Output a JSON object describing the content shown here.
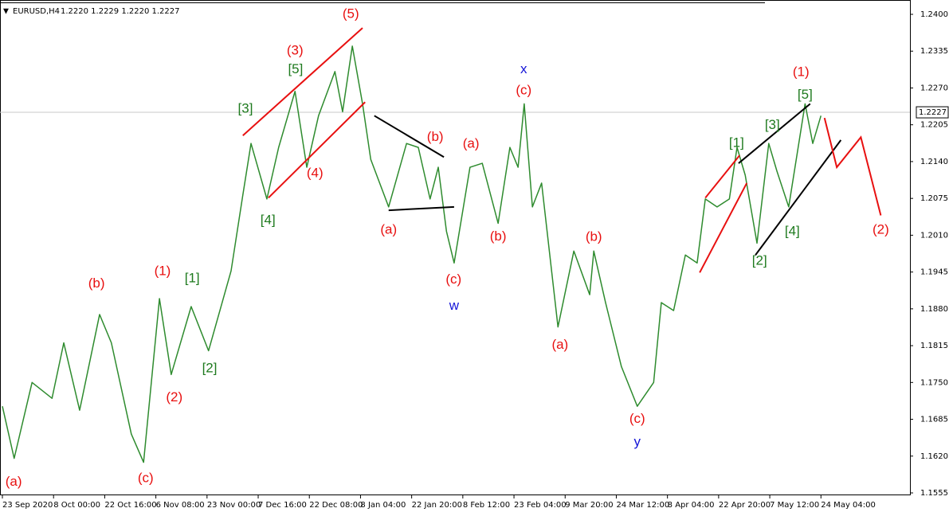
{
  "chart_data": {
    "type": "line",
    "symbol": "EURUSD,H4",
    "ohlc": "1.2220 1.2229 1.2220 1.2227",
    "last_price": {
      "value": 1.2227,
      "label": "1.2227"
    },
    "xlim": [
      0,
      17.74
    ],
    "xticks": [
      {
        "value": 0,
        "label": "23 Sep 2020"
      },
      {
        "value": 1,
        "label": "8 Oct 00:00"
      },
      {
        "value": 2,
        "label": "22 Oct 16:00"
      },
      {
        "value": 3,
        "label": "6 Nov 08:00"
      },
      {
        "value": 4,
        "label": "23 Nov 00:00"
      },
      {
        "value": 5,
        "label": "7 Dec 16:00"
      },
      {
        "value": 6,
        "label": "22 Dec 08:00"
      },
      {
        "value": 7,
        "label": "8 Jan 04:00"
      },
      {
        "value": 8,
        "label": "22 Jan 20:00"
      },
      {
        "value": 9,
        "label": "8 Feb 12:00"
      },
      {
        "value": 10,
        "label": "23 Feb 04:00"
      },
      {
        "value": 11,
        "label": "9 Mar 20:00"
      },
      {
        "value": 12,
        "label": "24 Mar 12:00"
      },
      {
        "value": 13,
        "label": "8 Apr 04:00"
      },
      {
        "value": 14,
        "label": "22 Apr 20:00"
      },
      {
        "value": 15,
        "label": "7 May 12:00"
      },
      {
        "value": 16,
        "label": "24 May 04:00"
      }
    ],
    "ylim": [
      1.1551,
      1.2421
    ],
    "yticks": [
      {
        "value": 1.24,
        "label": "1.2400"
      },
      {
        "value": 1.2335,
        "label": "1.2335"
      },
      {
        "value": 1.227,
        "label": "1.2270"
      },
      {
        "value": 1.2205,
        "label": "1.2205"
      },
      {
        "value": 1.214,
        "label": "1.2140"
      },
      {
        "value": 1.2075,
        "label": "1.2075"
      },
      {
        "value": 1.201,
        "label": "1.2010"
      },
      {
        "value": 1.1945,
        "label": "1.1945"
      },
      {
        "value": 1.188,
        "label": "1.1880"
      },
      {
        "value": 1.1815,
        "label": "1.1815"
      },
      {
        "value": 1.175,
        "label": "1.1750"
      },
      {
        "value": 1.1685,
        "label": "1.1685"
      },
      {
        "value": 1.162,
        "label": "1.1620"
      },
      {
        "value": 1.1555,
        "label": "1.1555"
      }
    ],
    "x": [
      0,
      0.23,
      0.58,
      0.97,
      1.2,
      1.51,
      1.9,
      2.13,
      2.52,
      2.76,
      3.07,
      3.3,
      3.69,
      4.03,
      4.47,
      4.7,
      4.86,
      5.17,
      5.4,
      5.72,
      5.95,
      6.18,
      6.5,
      6.65,
      6.84,
      7.04,
      7.2,
      7.55,
      7.9,
      8.13,
      8.36,
      8.52,
      8.68,
      8.83,
      9.14,
      9.38,
      9.69,
      9.92,
      10.08,
      10.2,
      10.36,
      10.54,
      10.86,
      11.17,
      11.48,
      11.56,
      11.79,
      12.1,
      12.41,
      12.73,
      12.88,
      13.12,
      13.35,
      13.58,
      13.74,
      13.97,
      14.21,
      14.36,
      14.52,
      14.75,
      14.98,
      15.14,
      15.37,
      15.69,
      15.84,
      16
    ],
    "series": [
      {
        "color": "#2e8b2e",
        "values": [
          1.1708,
          1.1616,
          1.175,
          1.1722,
          1.182,
          1.1701,
          1.187,
          1.182,
          1.1659,
          1.1609,
          1.1898,
          1.1764,
          1.1884,
          1.1806,
          1.1947,
          1.2081,
          1.2172,
          1.2074,
          1.2165,
          1.2264,
          1.213,
          1.2221,
          1.2299,
          1.2228,
          1.2344,
          1.2242,
          1.2144,
          1.206,
          1.2172,
          1.2165,
          1.2074,
          1.213,
          1.2017,
          1.1961,
          1.213,
          1.2137,
          1.2031,
          1.2165,
          1.213,
          1.2242,
          1.206,
          1.2102,
          1.1848,
          1.1982,
          1.1905,
          1.1982,
          1.1891,
          1.1778,
          1.1708,
          1.175,
          1.1891,
          1.1877,
          1.1975,
          1.1961,
          1.2074,
          1.206,
          1.2074,
          1.2165,
          1.2116,
          1.1996,
          1.2172,
          1.2123,
          1.206,
          1.2242,
          1.2172,
          1.2221
        ]
      }
    ],
    "lines": [
      {
        "color": "#e81010",
        "x": [
          4.7,
          7.04
        ],
        "y": [
          1.2186,
          1.2376
        ]
      },
      {
        "color": "#e81010",
        "x": [
          5.2,
          7.09
        ],
        "y": [
          1.2076,
          1.2245
        ]
      },
      {
        "color": "#000000",
        "x": [
          7.27,
          8.63
        ],
        "y": [
          1.2221,
          1.2148
        ]
      },
      {
        "color": "#000000",
        "x": [
          7.55,
          8.83
        ],
        "y": [
          1.2054,
          1.206
        ]
      },
      {
        "color": "#e81010",
        "x": [
          13.74,
          14.41
        ],
        "y": [
          1.2076,
          1.2151
        ]
      },
      {
        "color": "#e81010",
        "x": [
          13.63,
          14.55
        ],
        "y": [
          1.1944,
          1.2102
        ]
      },
      {
        "color": "#000000",
        "x": [
          14.39,
          15.79
        ],
        "y": [
          1.2137,
          1.2242
        ]
      },
      {
        "color": "#000000",
        "x": [
          14.72,
          16.39
        ],
        "y": [
          1.1975,
          1.2178
        ]
      },
      {
        "color": "#e81010",
        "x": [
          16.07,
          16.31,
          16.78,
          17.17
        ],
        "y": [
          1.2217,
          1.213,
          1.2183,
          1.2045
        ]
      }
    ],
    "annotations": [
      {
        "text": "(a)",
        "color": "#e81010",
        "x": 0.22,
        "y": 1.1574
      },
      {
        "text": "(b)",
        "color": "#e81010",
        "x": 1.84,
        "y": 1.1924
      },
      {
        "text": "(1)",
        "color": "#e81010",
        "x": 3.13,
        "y": 1.1946
      },
      {
        "text": "(c)",
        "color": "#e81010",
        "x": 2.8,
        "y": 1.158
      },
      {
        "text": "(2)",
        "color": "#e81010",
        "x": 3.36,
        "y": 1.1723
      },
      {
        "text": "(3)",
        "color": "#e81010",
        "x": 5.72,
        "y": 1.2335
      },
      {
        "text": "(4)",
        "color": "#e81010",
        "x": 6.11,
        "y": 1.2119
      },
      {
        "text": "(5)",
        "color": "#e81010",
        "x": 6.81,
        "y": 1.24
      },
      {
        "text": "(a)",
        "color": "#e81010",
        "x": 7.55,
        "y": 1.2019
      },
      {
        "text": "(b)",
        "color": "#e81010",
        "x": 8.46,
        "y": 1.2183
      },
      {
        "text": "(c)",
        "color": "#e81010",
        "x": 8.82,
        "y": 1.1931
      },
      {
        "text": "(a)",
        "color": "#e81010",
        "x": 9.16,
        "y": 1.2171
      },
      {
        "text": "(b)",
        "color": "#e81010",
        "x": 9.69,
        "y": 1.2007
      },
      {
        "text": "(c)",
        "color": "#e81010",
        "x": 10.19,
        "y": 1.2265
      },
      {
        "text": "(a)",
        "color": "#e81010",
        "x": 10.9,
        "y": 1.1816
      },
      {
        "text": "(b)",
        "color": "#e81010",
        "x": 11.56,
        "y": 1.2006
      },
      {
        "text": "(c)",
        "color": "#e81010",
        "x": 12.41,
        "y": 1.1685
      },
      {
        "text": "(1)",
        "color": "#e81010",
        "x": 15.61,
        "y": 1.2297
      },
      {
        "text": "(2)",
        "color": "#e81010",
        "x": 17.17,
        "y": 1.2019
      },
      {
        "text": "[1]",
        "color": "#1e7a1e",
        "x": 3.71,
        "y": 1.1933
      },
      {
        "text": "[2]",
        "color": "#1e7a1e",
        "x": 4.05,
        "y": 1.1774
      },
      {
        "text": "[3]",
        "color": "#1e7a1e",
        "x": 4.75,
        "y": 1.2233
      },
      {
        "text": "[5]",
        "color": "#1e7a1e",
        "x": 5.73,
        "y": 1.2302
      },
      {
        "text": "[4]",
        "color": "#1e7a1e",
        "x": 5.19,
        "y": 1.2036
      },
      {
        "text": "[1]",
        "color": "#1e7a1e",
        "x": 14.35,
        "y": 1.2172
      },
      {
        "text": "[3]",
        "color": "#1e7a1e",
        "x": 15.05,
        "y": 1.2204
      },
      {
        "text": "[5]",
        "color": "#1e7a1e",
        "x": 15.69,
        "y": 1.2257
      },
      {
        "text": "[4]",
        "color": "#1e7a1e",
        "x": 15.44,
        "y": 1.2016
      },
      {
        "text": "[2]",
        "color": "#1e7a1e",
        "x": 14.8,
        "y": 1.1964
      },
      {
        "text": "w",
        "color": "#1414d8",
        "x": 8.83,
        "y": 1.1885
      },
      {
        "text": "x",
        "color": "#1414d8",
        "x": 10.19,
        "y": 1.2302
      },
      {
        "text": "y",
        "color": "#1414d8",
        "x": 12.41,
        "y": 1.1644
      }
    ]
  }
}
